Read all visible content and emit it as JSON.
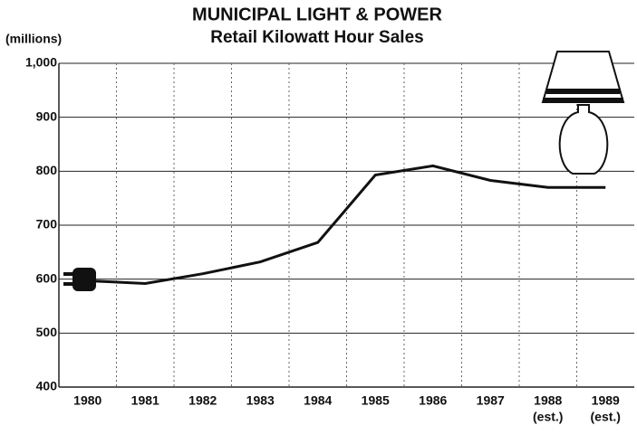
{
  "chart_data": {
    "type": "line",
    "title": "MUNICIPAL LIGHT & POWER",
    "subtitle": "Retail Kilowatt Hour Sales",
    "y_label": "(millions)",
    "categories": [
      "1980",
      "1981",
      "1982",
      "1983",
      "1984",
      "1985",
      "1986",
      "1987",
      "1988",
      "1989"
    ],
    "x_sublabels": [
      null,
      null,
      null,
      null,
      null,
      null,
      null,
      null,
      "(est.)",
      "(est.)"
    ],
    "series": [
      {
        "name": "Retail Kilowatt Hour Sales",
        "color": "#111111",
        "values": [
          597,
          592,
          610,
          632,
          668,
          793,
          810,
          783,
          770,
          770
        ]
      }
    ],
    "ylim": [
      400,
      1000
    ],
    "yticks": [
      400,
      500,
      600,
      700,
      800,
      900,
      {
        "value": 1000,
        "label": "1,000"
      }
    ],
    "grid": true
  }
}
